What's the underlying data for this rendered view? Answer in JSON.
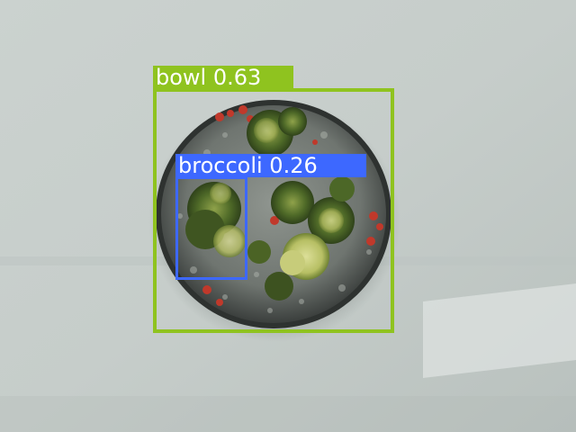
{
  "detections": {
    "bowl": {
      "label_text": "bowl 0.63",
      "class": "bowl",
      "confidence": 0.63,
      "color": "#8fc31f"
    },
    "broccoli": {
      "label_text": "broccoli 0.26",
      "class": "broccoli",
      "confidence": 0.26,
      "color": "#3d68ff"
    }
  }
}
